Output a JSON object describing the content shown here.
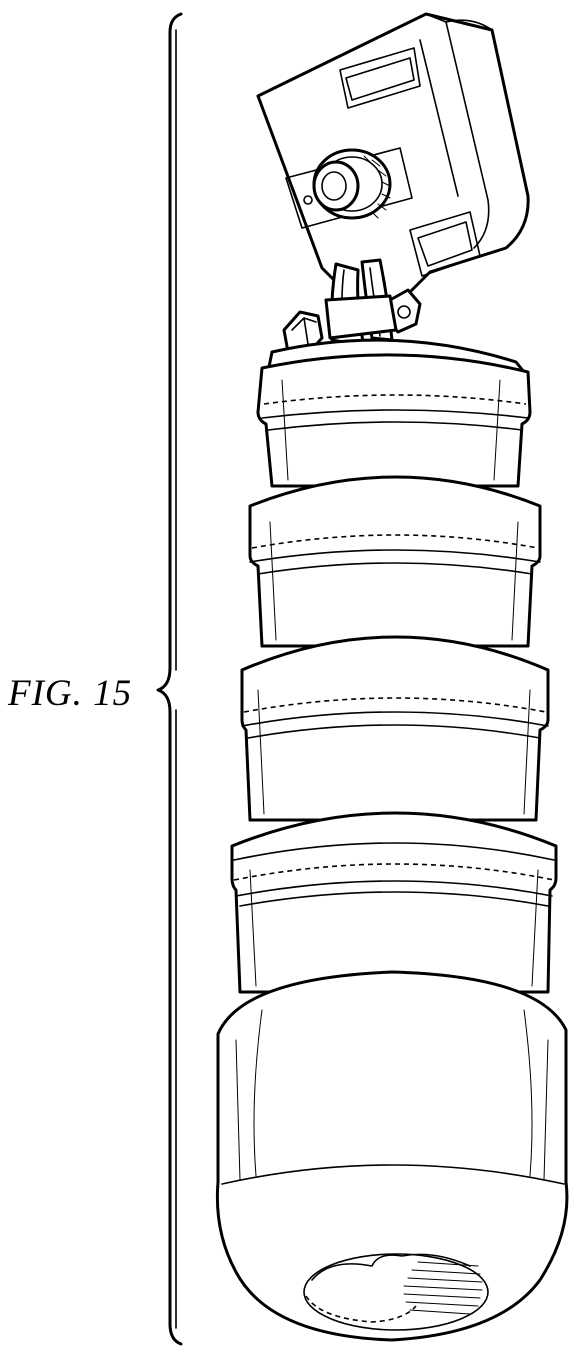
{
  "figure": {
    "label": "FIG. 15"
  }
}
